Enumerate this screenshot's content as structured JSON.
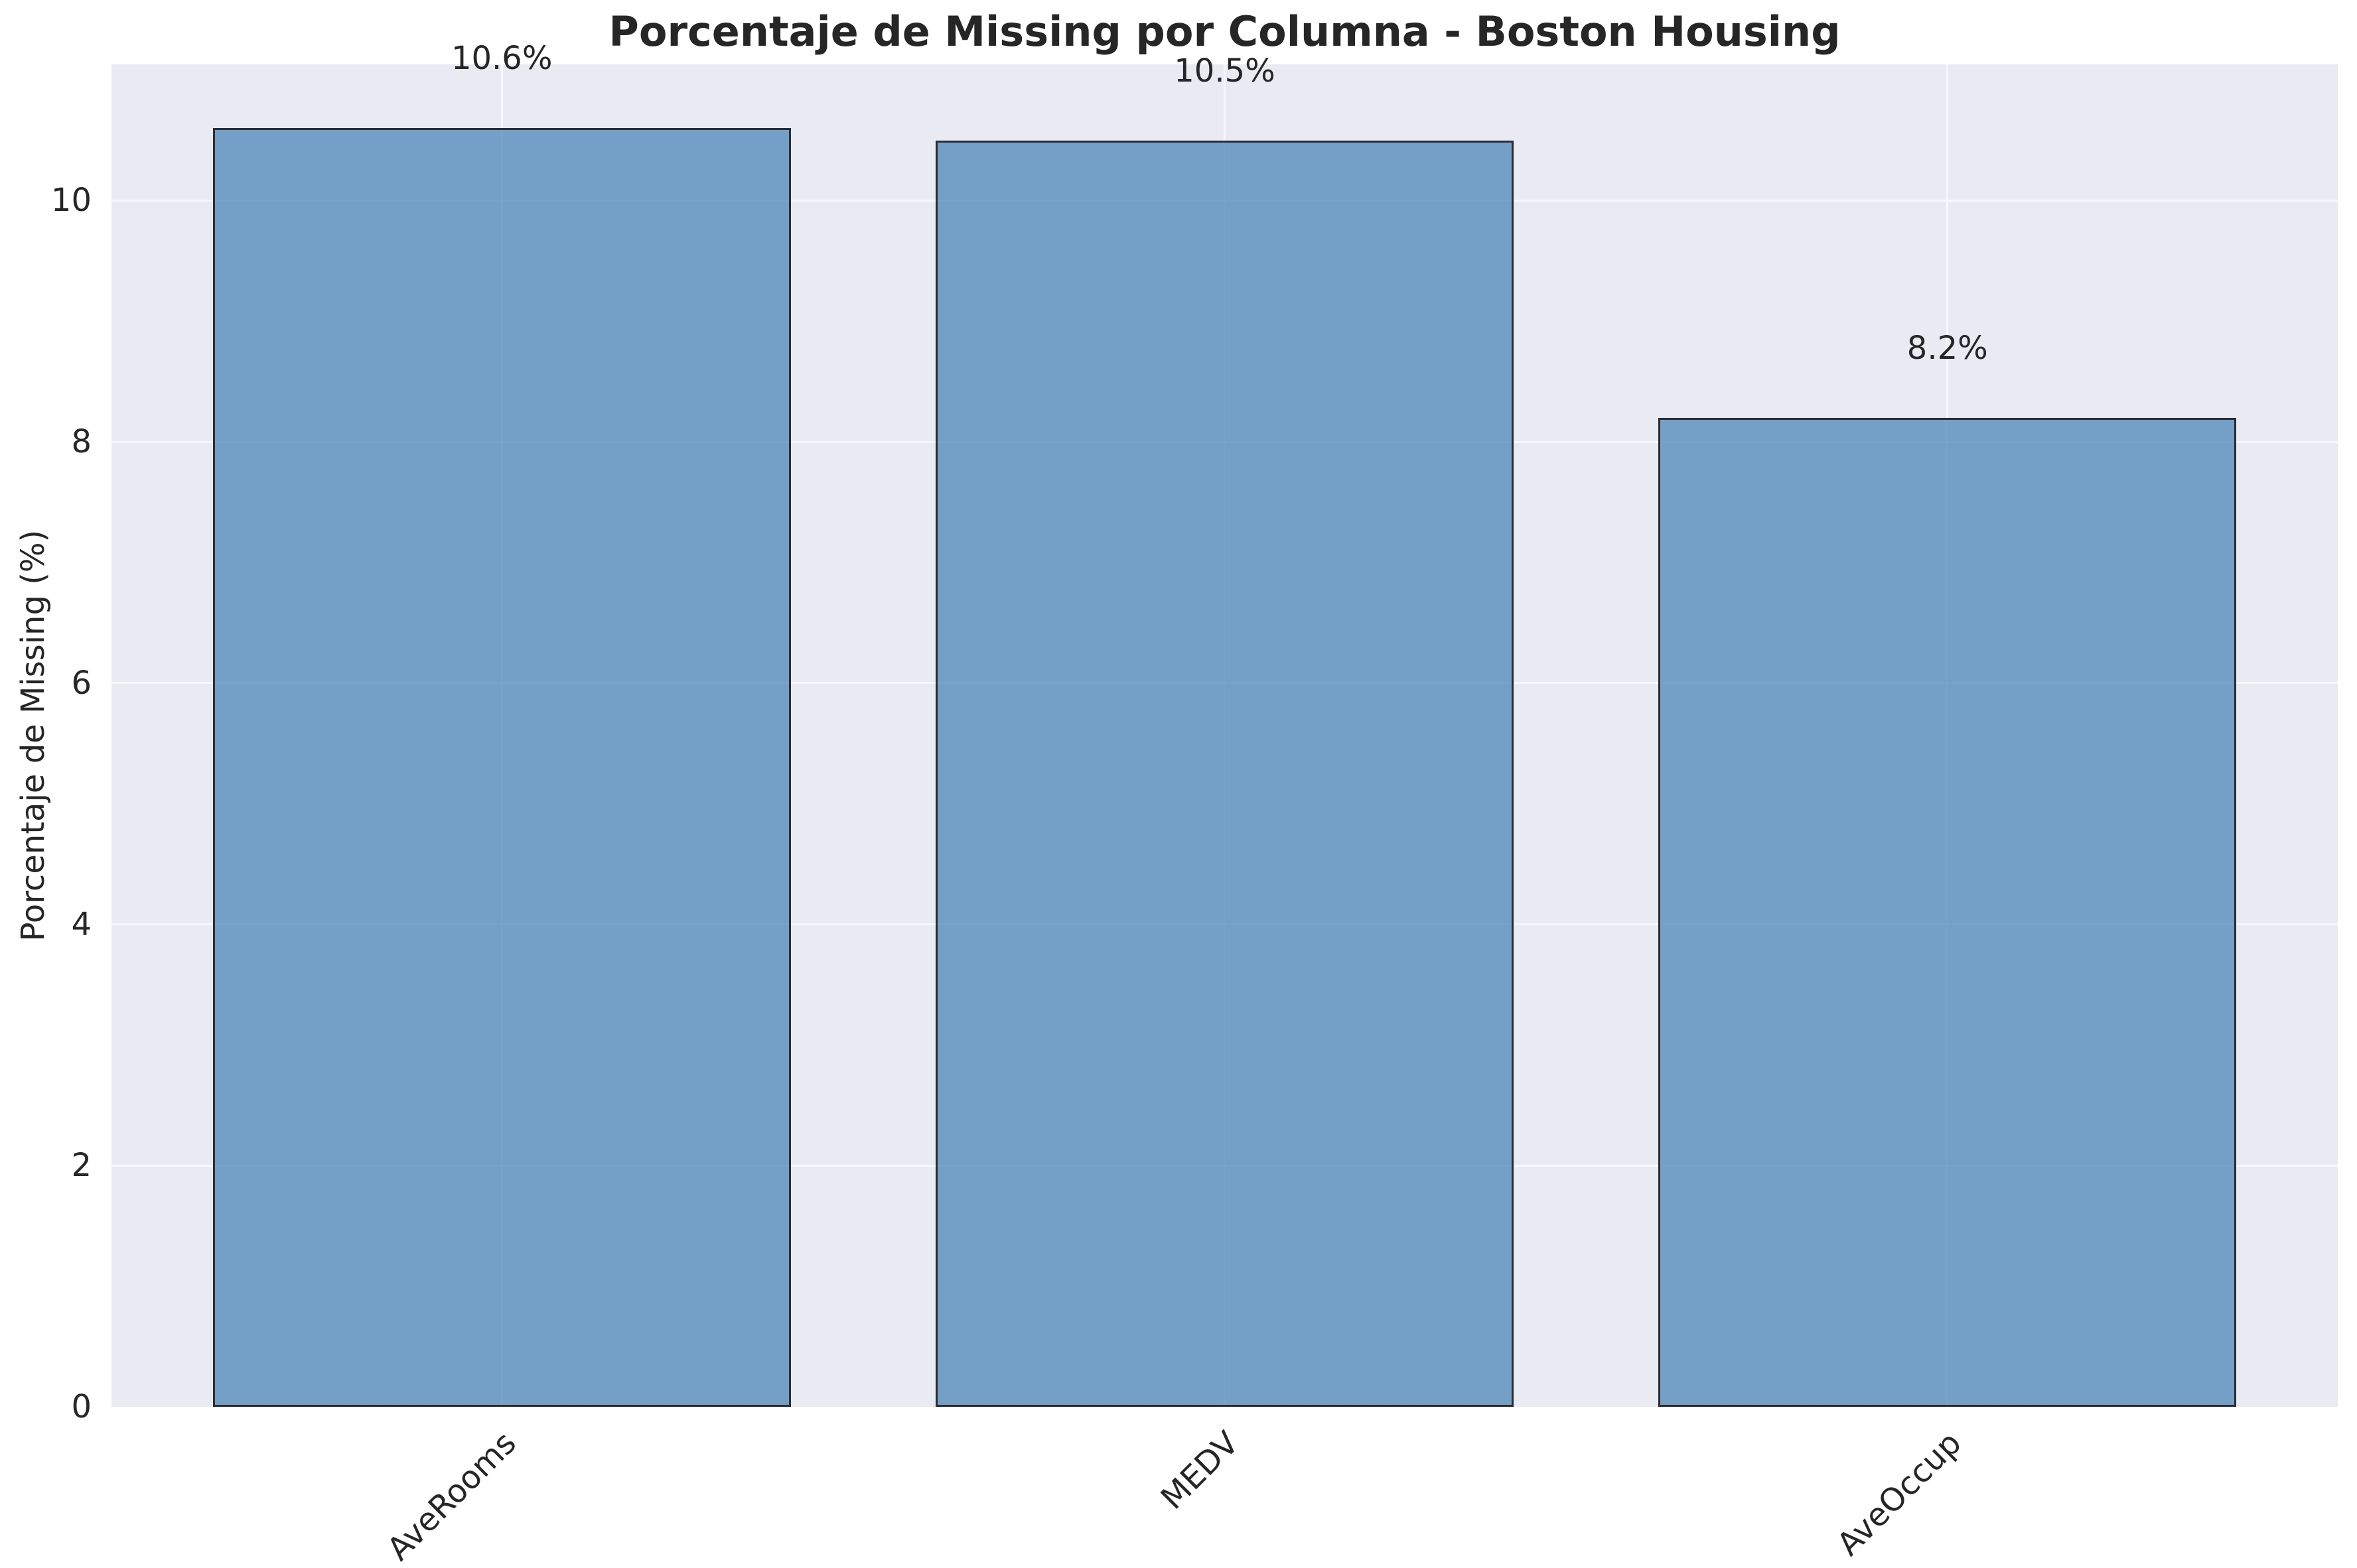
{
  "title": "Porcentaje de Missing por Columna - Boston Housing",
  "chart_data": {
    "type": "bar",
    "title": "Porcentaje de Missing por Columna - Boston Housing",
    "categories": [
      "AveRooms",
      "MEDV",
      "AveOccup"
    ],
    "values": [
      10.6,
      10.5,
      8.2
    ],
    "bar_labels": [
      "10.6%",
      "10.5%",
      "8.2%"
    ],
    "xlabel": "",
    "ylabel": "Porcentaje de Missing (%)",
    "yticks": [
      0,
      2,
      4,
      6,
      8,
      10
    ],
    "ylim": [
      0,
      11.13
    ],
    "xlim": [
      -0.54,
      2.54
    ],
    "bar_width_units": 0.8,
    "label_offset_units": 0.5,
    "grid": true,
    "legend": false,
    "colors": {
      "bar_fill": "rgba(70, 130, 180, 0.72)",
      "bar_fill_hex_approx": "#75a0c7",
      "bar_edge": "#2b2b33",
      "plot_background": "#eaeaf2",
      "gridline": "#f7f7fb",
      "figure_background": "#ffffff",
      "text": "#262626"
    }
  }
}
